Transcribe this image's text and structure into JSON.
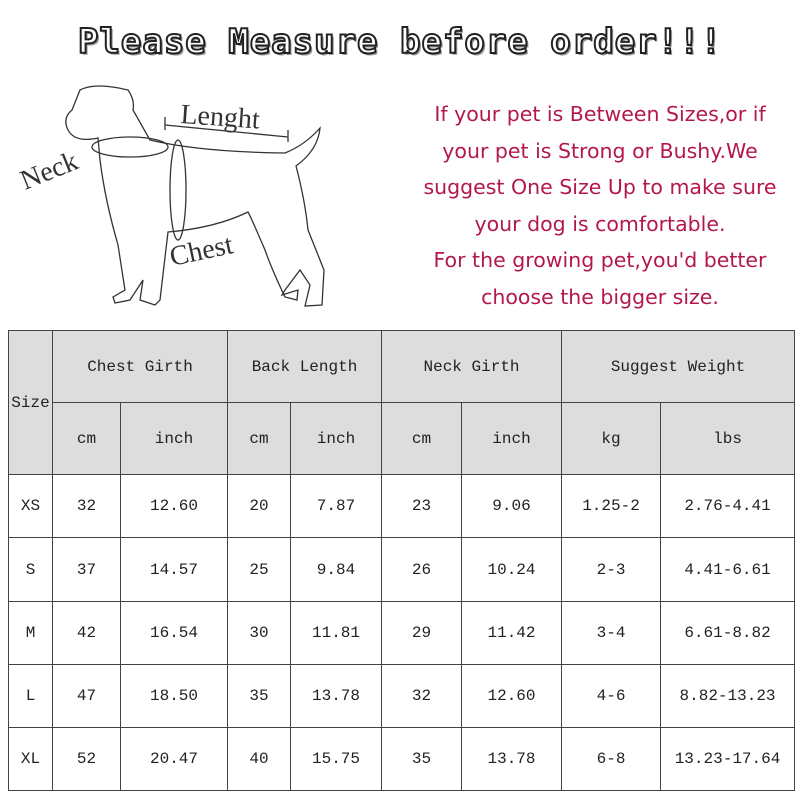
{
  "title": "Please Measure before order!!!",
  "diagram": {
    "neck": "Neck",
    "length": "Lenght",
    "chest": "Chest"
  },
  "note": [
    "If your pet is Between Sizes,or if",
    "your pet is Strong or Bushy.We",
    "suggest One Size Up to make sure",
    "your dog is comfortable.",
    "For the growing pet,you'd better",
    "choose the bigger size."
  ],
  "note_color": "#b3174f",
  "table": {
    "size_label": "Size",
    "groups": [
      "Chest Girth",
      "Back Length",
      "Neck Girth",
      "Suggest Weight"
    ],
    "units": [
      "cm",
      "inch",
      "cm",
      "inch",
      "cm",
      "inch",
      "kg",
      "lbs"
    ],
    "rows": [
      [
        "XS",
        "32",
        "12.60",
        "20",
        "7.87",
        "23",
        "9.06",
        "1.25-2",
        "2.76-4.41"
      ],
      [
        "S",
        "37",
        "14.57",
        "25",
        "9.84",
        "26",
        "10.24",
        "2-3",
        "4.41-6.61"
      ],
      [
        "M",
        "42",
        "16.54",
        "30",
        "11.81",
        "29",
        "11.42",
        "3-4",
        "6.61-8.82"
      ],
      [
        "L",
        "47",
        "18.50",
        "35",
        "13.78",
        "32",
        "12.60",
        "4-6",
        "8.82-13.23"
      ],
      [
        "XL",
        "52",
        "20.47",
        "40",
        "15.75",
        "35",
        "13.78",
        "6-8",
        "13.23-17.64"
      ]
    ]
  }
}
